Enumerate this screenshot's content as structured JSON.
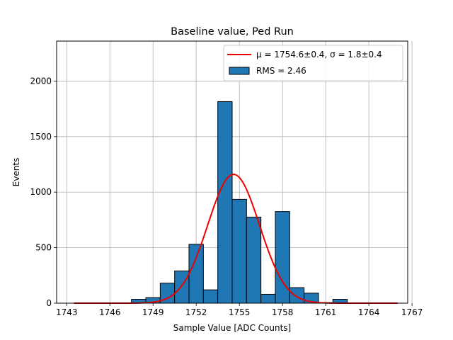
{
  "chart_data": {
    "type": "bar",
    "title": "Baseline value, Ped Run",
    "xlabel": "Sample Value [ADC Counts]",
    "ylabel": "Events",
    "xlim": [
      1742.3,
      1766.7
    ],
    "ylim": [
      0,
      2360
    ],
    "grid": true,
    "xticks": [
      1743,
      1746,
      1749,
      1752,
      1755,
      1758,
      1761,
      1764,
      1767
    ],
    "xtick_labels": [
      "1743",
      "1746",
      "1749",
      "1752",
      "1755",
      "1758",
      "1761",
      "1764",
      "1767"
    ],
    "yticks": [
      0,
      500,
      1000,
      1500,
      2000
    ],
    "ytick_labels": [
      "0",
      "500",
      "1000",
      "1500",
      "2000"
    ],
    "bin_width": 1,
    "bins": [
      {
        "left": 1747.5,
        "value": 35
      },
      {
        "left": 1748.5,
        "value": 50
      },
      {
        "left": 1749.5,
        "value": 180
      },
      {
        "left": 1750.5,
        "value": 290
      },
      {
        "left": 1751.5,
        "value": 530
      },
      {
        "left": 1752.5,
        "value": 120
      },
      {
        "left": 1753.5,
        "value": 1815
      },
      {
        "left": 1754.5,
        "value": 935
      },
      {
        "left": 1755.5,
        "value": 775
      },
      {
        "left": 1756.5,
        "value": 80
      },
      {
        "left": 1757.5,
        "value": 825
      },
      {
        "left": 1758.5,
        "value": 140
      },
      {
        "left": 1759.5,
        "value": 90
      },
      {
        "left": 1760.5,
        "value": 5
      },
      {
        "left": 1761.5,
        "value": 35
      }
    ],
    "fit": {
      "type": "gaussian",
      "x_range": [
        1743.5,
        1766
      ],
      "amplitude": 1160,
      "mu": 1754.6,
      "sigma": 1.8,
      "color": "#ee0000"
    },
    "bar_color": "#1f77b4",
    "legend": {
      "position": "top-right",
      "entries": [
        {
          "kind": "line",
          "label": "μ = 1754.6±0.4, σ = 1.8±0.4",
          "color": "#ee0000"
        },
        {
          "kind": "patch",
          "label": "RMS = 2.46",
          "color": "#1f77b4"
        }
      ]
    }
  }
}
